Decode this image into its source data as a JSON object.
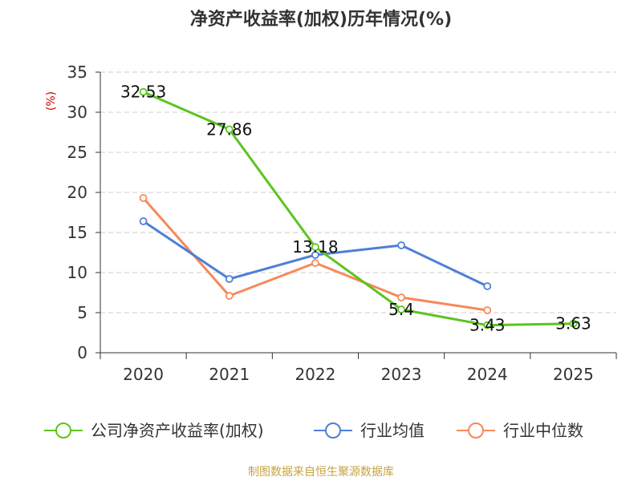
{
  "chart_data": {
    "type": "line",
    "title": "净资产收益率(加权)历年情况(%)",
    "ylabel": "(%)",
    "xlabel": "",
    "categories": [
      "2020",
      "2021",
      "2022",
      "2023",
      "2024",
      "2025"
    ],
    "ylim": [
      0,
      35
    ],
    "yticks": [
      0,
      5,
      10,
      15,
      20,
      25,
      30,
      35
    ],
    "grid": true,
    "legend_position": "bottom",
    "series": [
      {
        "name": "公司净资产收益率(加权)",
        "color": "#5cc41f",
        "values": [
          32.53,
          27.86,
          13.18,
          5.4,
          3.43,
          3.63
        ],
        "labels": [
          "32.53",
          "27.86",
          "13.18",
          "5.4",
          "3.43",
          "3.63"
        ]
      },
      {
        "name": "行业均值",
        "color": "#4f7fd6",
        "values": [
          16.4,
          9.2,
          12.2,
          13.4,
          8.3,
          null
        ]
      },
      {
        "name": "行业中位数",
        "color": "#f5895a",
        "values": [
          19.3,
          7.1,
          11.2,
          6.9,
          5.3,
          null
        ]
      }
    ]
  },
  "footer": {
    "source": "制图数据来自恒生聚源数据库"
  }
}
